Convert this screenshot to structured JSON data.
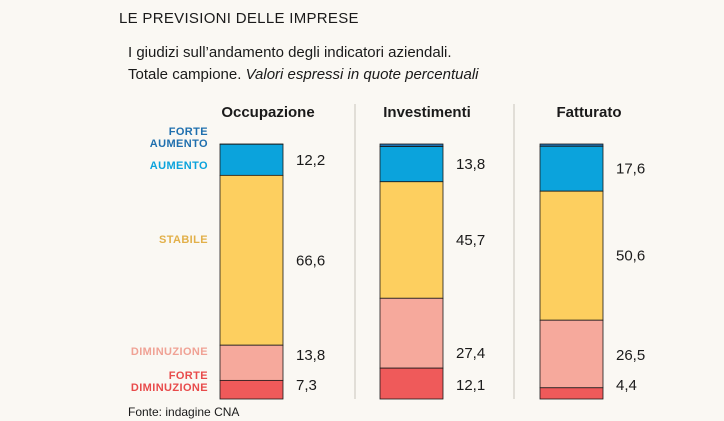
{
  "title": "LE PREVISIONI DELLE IMPRESE",
  "subtitle_line1": "I giudizi sull’andamento degli indicatori aziendali.",
  "subtitle_line2_plain": "Totale campione.",
  "subtitle_line2_italic": "Valori espressi in quote percentuali",
  "source": "Fonte: indagine CNA",
  "colors": {
    "forte_aumento": "#1f6fae",
    "aumento": "#0ba3dc",
    "stabile": "#fdcf5f",
    "diminuzione": "#f6a99c",
    "forte_diminuzione": "#ef5a5a",
    "outline": "#1a1a1a",
    "divider": "#c8c4bb"
  },
  "legend": [
    {
      "key": "forte_aumento",
      "lines": [
        "FORTE",
        "AUMENTO"
      ],
      "color": "#1f6fae"
    },
    {
      "key": "aumento",
      "lines": [
        "AUMENTO"
      ],
      "color": "#0ba3dc"
    },
    {
      "key": "stabile",
      "lines": [
        "STABILE"
      ],
      "color": "#e2b04a"
    },
    {
      "key": "diminuzione",
      "lines": [
        "DIMINUZIONE"
      ],
      "color": "#f0a295"
    },
    {
      "key": "forte_diminuzione",
      "lines": [
        "FORTE",
        "DIMINUZIONE"
      ],
      "color": "#e84b4b"
    }
  ],
  "chart_data": {
    "type": "bar",
    "stacked": true,
    "categories": [
      "Occupazione",
      "Investimenti",
      "Fatturato"
    ],
    "series": [
      {
        "name": "FORTE AUMENTO",
        "values": [
          0.1,
          1.0,
          0.9
        ]
      },
      {
        "name": "AUMENTO",
        "values": [
          12.2,
          13.8,
          17.6
        ]
      },
      {
        "name": "STABILE",
        "values": [
          66.6,
          45.7,
          50.6
        ]
      },
      {
        "name": "DIMINUZIONE",
        "values": [
          13.8,
          27.4,
          26.5
        ]
      },
      {
        "name": "FORTE DIMINUZIONE",
        "values": [
          7.3,
          12.1,
          4.4
        ]
      }
    ],
    "value_labels": [
      {
        "aumento": "12,2",
        "stabile": "66,6",
        "diminuzione": "13,8",
        "forte_diminuzione": "7,3"
      },
      {
        "aumento": "13,8",
        "stabile": "45,7",
        "diminuzione": "27,4",
        "forte_diminuzione": "12,1"
      },
      {
        "aumento": "17,6",
        "stabile": "50,6",
        "diminuzione": "26,5",
        "forte_diminuzione": "4,4"
      }
    ],
    "ylim": [
      0,
      100
    ]
  }
}
